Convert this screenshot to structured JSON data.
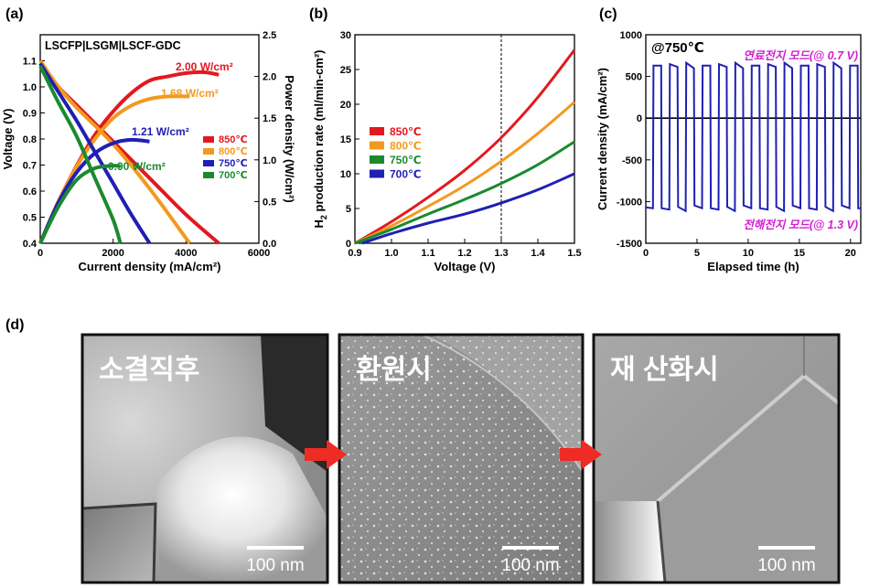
{
  "chart_data": [
    {
      "panel": "(a)",
      "type": "line",
      "inset_label": "LSCFP|LSGM|LSCF-GDC",
      "xlabel": "Current density (mA/cm²)",
      "ylabel": "Voltage (V)",
      "y2label": "Power density (W/cm²)",
      "xlim": [
        0,
        6000
      ],
      "ylim": [
        0.4,
        1.2
      ],
      "y2lim": [
        0,
        2.5
      ],
      "xticks": [
        0,
        2000,
        4000,
        6000
      ],
      "yticks": [
        0.4,
        0.5,
        0.6,
        0.7,
        0.8,
        0.9,
        1.0,
        1.1
      ],
      "y2ticks": [
        0.0,
        0.5,
        1.0,
        1.5,
        2.0,
        2.5
      ],
      "legend_position": "center-right",
      "series": [
        {
          "name": "850℃",
          "color": "#e3181f",
          "peak_label": "2.00 W/cm²",
          "iv": [
            [
              0,
              1.09
            ],
            [
              500,
              1.0
            ],
            [
              1000,
              0.93
            ],
            [
              2000,
              0.79
            ],
            [
              3000,
              0.65
            ],
            [
              4000,
              0.51
            ],
            [
              4900,
              0.4
            ]
          ],
          "power": [
            [
              0,
              0
            ],
            [
              500,
              0.5
            ],
            [
              1000,
              0.93
            ],
            [
              1500,
              1.3
            ],
            [
              2000,
              1.58
            ],
            [
              2500,
              1.8
            ],
            [
              3000,
              1.95
            ],
            [
              3500,
              2.0
            ],
            [
              4000,
              2.04
            ],
            [
              4500,
              2.05
            ],
            [
              4900,
              2.02
            ]
          ]
        },
        {
          "name": "800℃",
          "color": "#f29a1f",
          "peak_label": "1.68 W/cm²",
          "iv": [
            [
              0,
              1.1
            ],
            [
              500,
              1.0
            ],
            [
              1000,
              0.92
            ],
            [
              2000,
              0.78
            ],
            [
              3000,
              0.61
            ],
            [
              4100,
              0.4
            ]
          ],
          "power": [
            [
              0,
              0
            ],
            [
              500,
              0.5
            ],
            [
              1000,
              0.92
            ],
            [
              1500,
              1.25
            ],
            [
              2000,
              1.5
            ],
            [
              2500,
              1.65
            ],
            [
              3000,
              1.73
            ],
            [
              3500,
              1.76
            ],
            [
              4100,
              1.76
            ]
          ]
        },
        {
          "name": "750℃",
          "color": "#1f1fb4",
          "peak_label": "1.21 W/cm²",
          "iv": [
            [
              0,
              1.09
            ],
            [
              500,
              0.98
            ],
            [
              1000,
              0.87
            ],
            [
              1500,
              0.75
            ],
            [
              2000,
              0.63
            ],
            [
              2500,
              0.51
            ],
            [
              3000,
              0.4
            ]
          ],
          "power": [
            [
              0,
              0
            ],
            [
              500,
              0.49
            ],
            [
              1000,
              0.85
            ],
            [
              1500,
              1.08
            ],
            [
              2000,
              1.2
            ],
            [
              2500,
              1.24
            ],
            [
              3000,
              1.22
            ]
          ]
        },
        {
          "name": "700℃",
          "color": "#1b8a2e",
          "peak_label": "0.90 W/cm²",
          "iv": [
            [
              0,
              1.08
            ],
            [
              500,
              0.94
            ],
            [
              1000,
              0.81
            ],
            [
              1500,
              0.65
            ],
            [
              2000,
              0.49
            ],
            [
              2200,
              0.4
            ]
          ],
          "power": [
            [
              0,
              0
            ],
            [
              500,
              0.44
            ],
            [
              1000,
              0.76
            ],
            [
              1500,
              0.9
            ],
            [
              2000,
              0.93
            ],
            [
              2200,
              0.92
            ]
          ]
        }
      ]
    },
    {
      "panel": "(b)",
      "type": "line",
      "xlabel": "Voltage (V)",
      "ylabel_main": "H",
      "ylabel_sub": "2",
      "ylabel_rest": " production rate (ml/min-cm²)",
      "xlim": [
        0.9,
        1.5
      ],
      "ylim": [
        0,
        30
      ],
      "xticks": [
        0.9,
        1.0,
        1.1,
        1.2,
        1.3,
        1.4,
        1.5
      ],
      "yticks": [
        0,
        5,
        10,
        15,
        20,
        25,
        30
      ],
      "reference_line_x": 1.3,
      "legend_position": "center-left",
      "series": [
        {
          "name": "850℃",
          "color": "#e3181f",
          "points": [
            [
              0.9,
              0
            ],
            [
              1.0,
              3.1
            ],
            [
              1.1,
              6.6
            ],
            [
              1.2,
              10.5
            ],
            [
              1.3,
              15.2
            ],
            [
              1.4,
              21.0
            ],
            [
              1.5,
              27.8
            ]
          ]
        },
        {
          "name": "800℃",
          "color": "#f29a1f",
          "points": [
            [
              0.9,
              0
            ],
            [
              1.0,
              2.5
            ],
            [
              1.1,
              5.3
            ],
            [
              1.2,
              8.3
            ],
            [
              1.3,
              11.8
            ],
            [
              1.4,
              15.8
            ],
            [
              1.5,
              20.3
            ]
          ]
        },
        {
          "name": "750℃",
          "color": "#1b8a2e",
          "points": [
            [
              0.9,
              0
            ],
            [
              1.0,
              2.0
            ],
            [
              1.1,
              4.2
            ],
            [
              1.2,
              6.3
            ],
            [
              1.3,
              8.6
            ],
            [
              1.4,
              11.3
            ],
            [
              1.5,
              14.6
            ]
          ]
        },
        {
          "name": "700℃",
          "color": "#1f1fb4",
          "points": [
            [
              0.92,
              0
            ],
            [
              1.0,
              1.4
            ],
            [
              1.1,
              2.9
            ],
            [
              1.2,
              4.2
            ],
            [
              1.3,
              5.8
            ],
            [
              1.4,
              7.7
            ],
            [
              1.5,
              10.0
            ]
          ]
        }
      ]
    },
    {
      "panel": "(c)",
      "type": "line",
      "inset_label": "@750℃",
      "xlabel": "Elapsed time (h)",
      "ylabel": "Current density (mA/cm²)",
      "xlim": [
        0,
        21
      ],
      "ylim": [
        -1500,
        1000
      ],
      "xticks": [
        0,
        5,
        10,
        15,
        20
      ],
      "yticks": [
        -1500,
        -1000,
        -500,
        0,
        500,
        1000
      ],
      "zero_line": true,
      "color": "#1f1fb4",
      "annotation_top": "연료전지 모드(@ 0.7 V)",
      "annotation_bottom": "전해전지 모드(@ 1.3 V)",
      "annotation_color": "#d21ed2",
      "cycle_hours": 1.6,
      "fuel_cell_current": 630,
      "electrolysis_current": -1080,
      "duration_h": 21
    }
  ],
  "panel_d": {
    "label": "(d)",
    "images": [
      {
        "caption": "소결직후",
        "scale_bar": "100 nm"
      },
      {
        "caption": "환원시",
        "scale_bar": "100 nm"
      },
      {
        "caption": "재 산화시",
        "scale_bar": "100 nm"
      }
    ],
    "arrow_color": "#ee2b24"
  }
}
